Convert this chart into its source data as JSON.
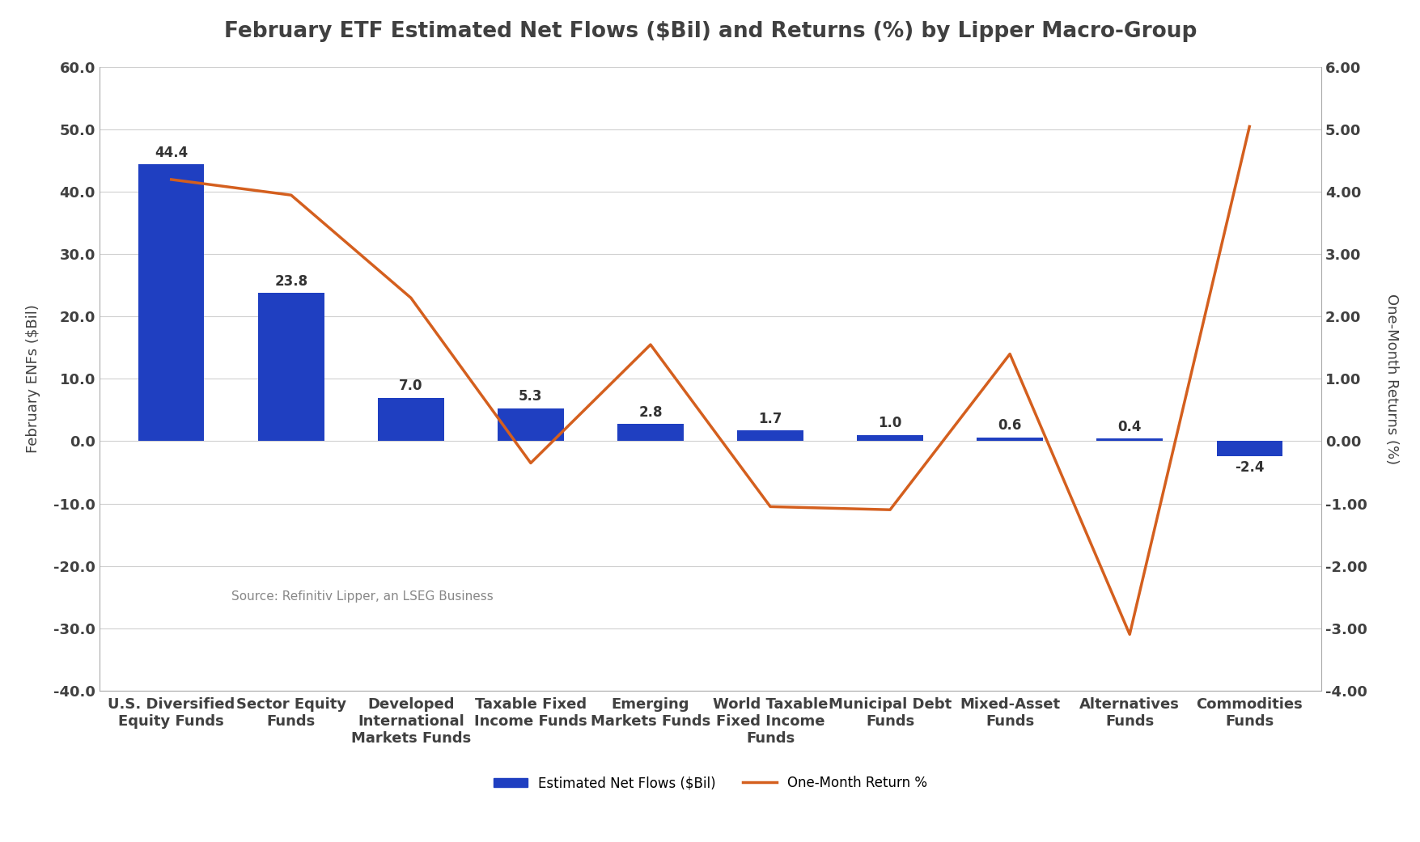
{
  "title": "February ETF Estimated Net Flows ($Bil) and Returns (%) by Lipper Macro-Group",
  "categories": [
    "U.S. Diversified\nEquity Funds",
    "Sector Equity\nFunds",
    "Developed\nInternational\nMarkets Funds",
    "Taxable Fixed\nIncome Funds",
    "Emerging\nMarkets Funds",
    "World Taxable\nFixed Income\nFunds",
    "Municipal Debt\nFunds",
    "Mixed-Asset\nFunds",
    "Alternatives\nFunds",
    "Commodities\nFunds"
  ],
  "bar_values": [
    44.4,
    23.8,
    7.0,
    5.3,
    2.8,
    1.7,
    1.0,
    0.6,
    0.4,
    -2.4
  ],
  "bar_labels": [
    "44.4",
    "23.8",
    "7.0",
    "5.3",
    "2.8",
    "1.7",
    "1.0",
    "0.6",
    "0.4",
    "-2.4"
  ],
  "line_values": [
    4.2,
    3.95,
    2.3,
    -0.35,
    1.55,
    -1.05,
    -1.1,
    1.4,
    -3.1,
    5.05
  ],
  "bar_color": "#1f3fc1",
  "line_color": "#d45f1e",
  "ylabel_left": "February ENFs ($Bil)",
  "ylabel_right": "One-Month Returns (%)",
  "ylim_left": [
    -40.0,
    60.0
  ],
  "ylim_right": [
    -4.0,
    6.0
  ],
  "yticks_left": [
    -40.0,
    -30.0,
    -20.0,
    -10.0,
    0.0,
    10.0,
    20.0,
    30.0,
    40.0,
    50.0,
    60.0
  ],
  "yticks_right": [
    -4.0,
    -3.0,
    -2.0,
    -1.0,
    0.0,
    1.0,
    2.0,
    3.0,
    4.0,
    5.0,
    6.0
  ],
  "legend_bar_label": "Estimated Net Flows ($Bil)",
  "legend_line_label": "One-Month Return %",
  "source_text": "Source: Refinitiv Lipper, an LSEG Business",
  "background_color": "#ffffff",
  "grid_color": "#d0d0d0",
  "title_fontsize": 19,
  "title_color": "#404040",
  "axis_label_fontsize": 13,
  "tick_fontsize": 13,
  "bar_label_fontsize": 12,
  "bar_width": 0.55,
  "source_fontsize": 11,
  "source_color": "#888888",
  "legend_fontsize": 12
}
